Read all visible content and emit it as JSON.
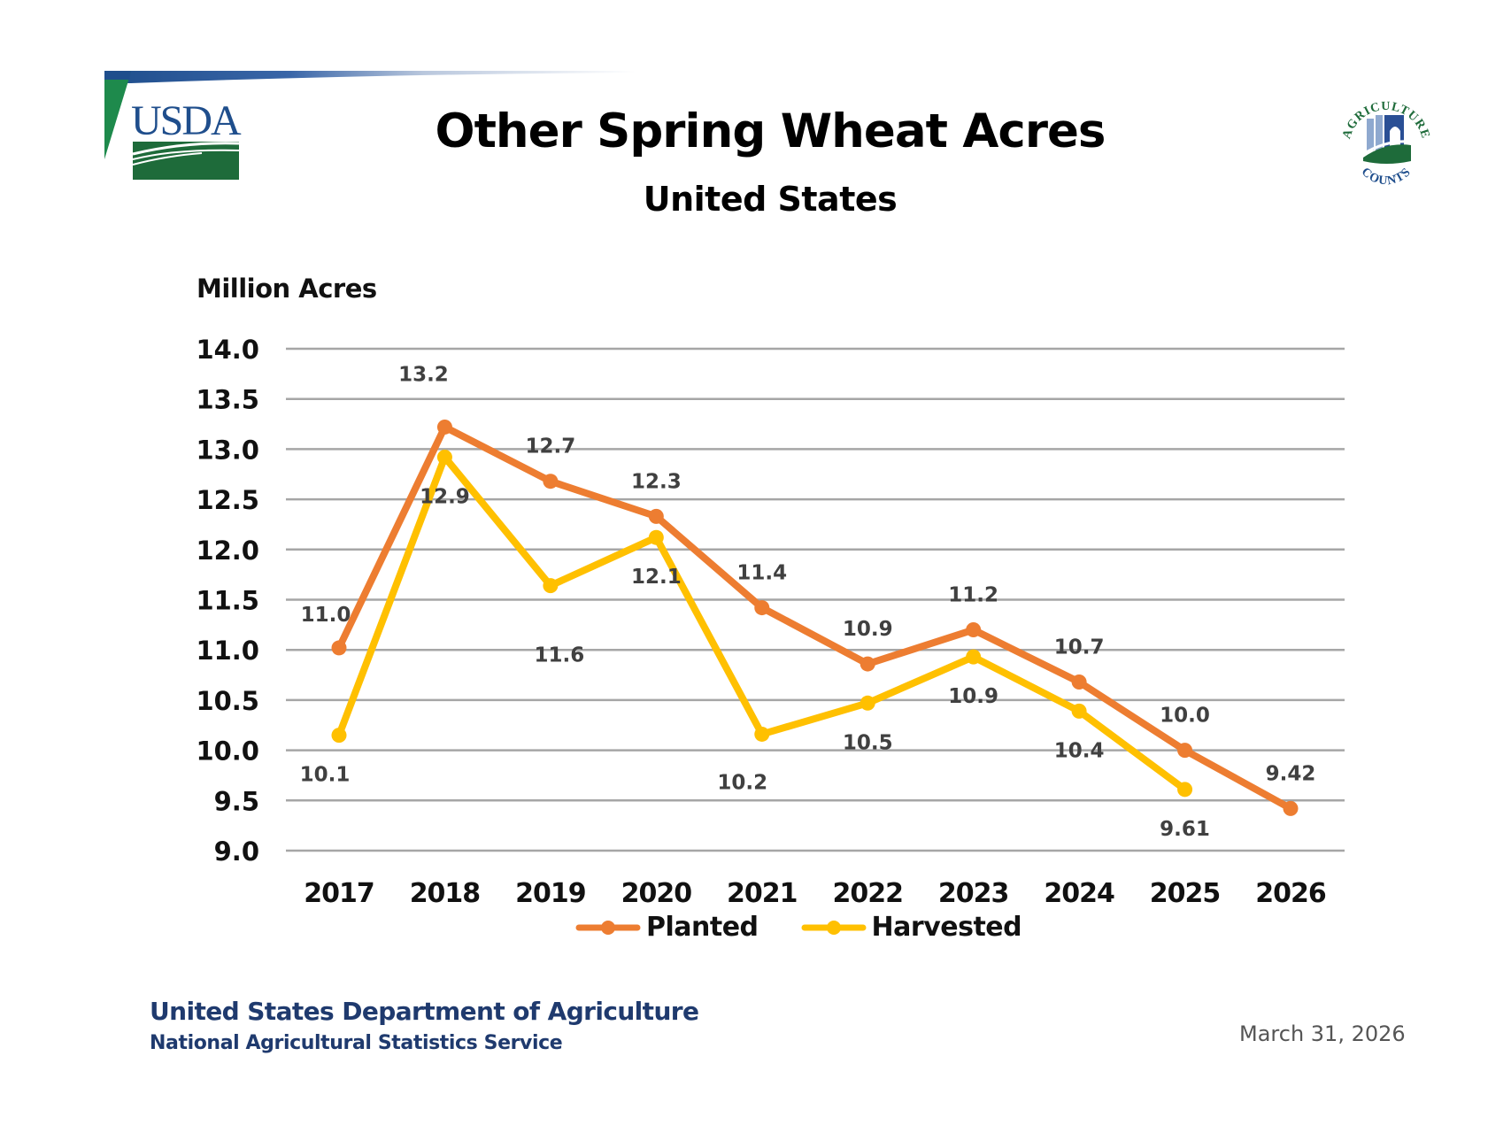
{
  "header": {
    "title": "Other Spring Wheat Acres",
    "subtitle": "United States",
    "logo_left": {
      "text": "USDA",
      "icon": "usda-logo-icon"
    },
    "logo_right": {
      "text_top": "AGRICULTURE",
      "text_bottom": "COUNTS",
      "icon": "agriculture-counts-logo-icon"
    }
  },
  "footer": {
    "org_line1": "United States Department of Agriculture",
    "org_line2": "National Agricultural Statistics Service",
    "date": "March 31, 2026"
  },
  "colors": {
    "planted": "#ED7D31",
    "harvested": "#FFC000",
    "grid": "#A6A6A6",
    "footer_text": "#1F3A6E",
    "usda_blue": "#1F4E8C",
    "usda_green": "#1E6B3A"
  },
  "chart_data": {
    "type": "line",
    "title": "Other Spring Wheat Acres",
    "subtitle": "United States",
    "xlabel": "",
    "ylabel": "Million Acres",
    "categories": [
      "2017",
      "2018",
      "2019",
      "2020",
      "2021",
      "2022",
      "2023",
      "2024",
      "2025",
      "2026"
    ],
    "ylim": [
      9.0,
      14.0
    ],
    "yticks": [
      "14.0",
      "13.5",
      "13.0",
      "12.5",
      "12.0",
      "11.5",
      "11.0",
      "10.5",
      "10.0",
      "9.5",
      "9.0"
    ],
    "grid": true,
    "legend_position": "bottom",
    "series": [
      {
        "name": "Planted",
        "color": "#ED7D31",
        "values": [
          11.02,
          13.22,
          12.68,
          12.33,
          11.42,
          10.86,
          11.2,
          10.68,
          10.0,
          9.42
        ],
        "labels": [
          "11.0",
          "13.2",
          "12.7",
          "12.3",
          "11.4",
          "10.9",
          "11.2",
          "10.7",
          "10.0",
          "9.42"
        ]
      },
      {
        "name": "Harvested",
        "color": "#FFC000",
        "values": [
          10.15,
          12.92,
          11.64,
          12.12,
          10.16,
          10.47,
          10.93,
          10.39,
          9.61,
          null
        ],
        "labels": [
          "10.1",
          "12.9",
          "11.6",
          "12.1",
          "10.2",
          "10.5",
          "10.9",
          "10.4",
          "9.61",
          null
        ]
      }
    ]
  }
}
